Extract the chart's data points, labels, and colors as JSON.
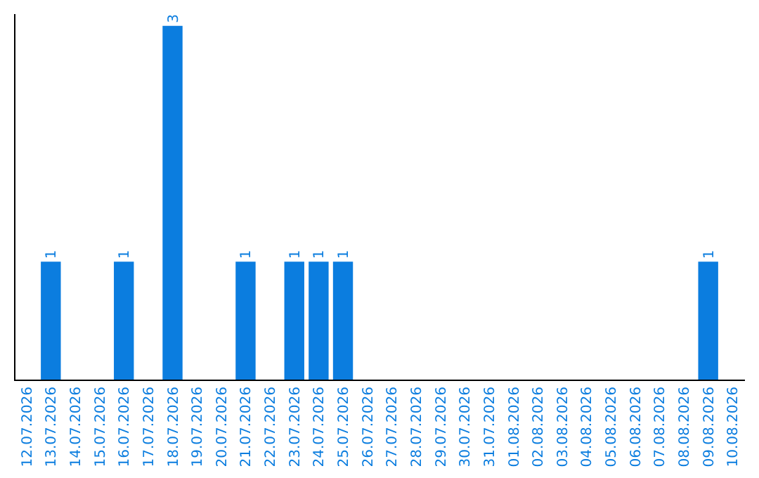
{
  "chart_data": {
    "type": "bar",
    "categories": [
      "12.07.2026",
      "13.07.2026",
      "14.07.2026",
      "15.07.2026",
      "16.07.2026",
      "17.07.2026",
      "18.07.2026",
      "19.07.2026",
      "20.07.2026",
      "21.07.2026",
      "22.07.2026",
      "23.07.2026",
      "24.07.2026",
      "25.07.2026",
      "26.07.2026",
      "27.07.2026",
      "28.07.2026",
      "29.07.2026",
      "30.07.2026",
      "31.07.2026",
      "01.08.2026",
      "02.08.2026",
      "03.08.2026",
      "04.08.2026",
      "05.08.2026",
      "06.08.2026",
      "07.08.2026",
      "08.08.2026",
      "09.08.2026",
      "10.08.2026"
    ],
    "values": [
      0,
      1,
      0,
      0,
      1,
      0,
      3,
      0,
      0,
      1,
      0,
      1,
      1,
      1,
      0,
      0,
      0,
      0,
      0,
      0,
      0,
      0,
      0,
      0,
      0,
      0,
      0,
      0,
      1,
      0
    ],
    "value_labels": [
      null,
      "1",
      null,
      null,
      "1",
      null,
      "3",
      null,
      null,
      "1",
      null,
      "1",
      "1",
      "1",
      null,
      null,
      null,
      null,
      null,
      null,
      null,
      null,
      null,
      null,
      null,
      null,
      null,
      null,
      "1",
      null
    ],
    "color": "#0b7ddf",
    "ylim": [
      0,
      3.1
    ],
    "tick_labels": "x"
  }
}
